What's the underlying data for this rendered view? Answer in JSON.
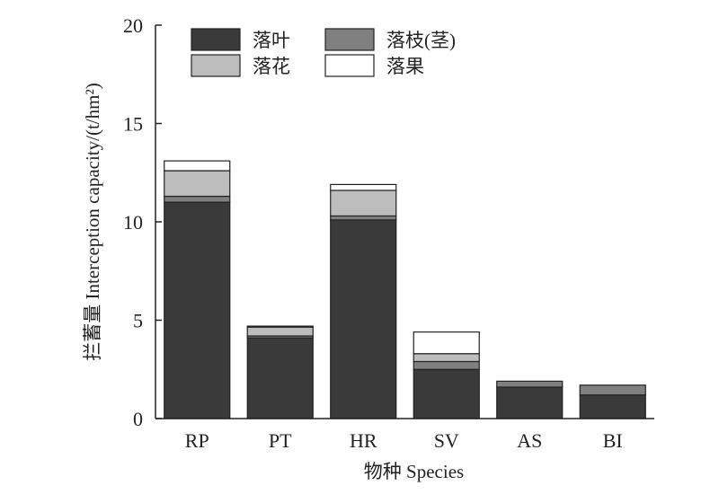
{
  "chart_data": {
    "type": "bar",
    "stacked": true,
    "categories": [
      "RP",
      "PT",
      "HR",
      "SV",
      "AS",
      "BI"
    ],
    "series": [
      {
        "name": "落叶",
        "color": "#3a3a3a",
        "values": [
          11.0,
          4.1,
          10.1,
          2.5,
          1.6,
          1.2
        ]
      },
      {
        "name": "落枝(茎)",
        "color": "#808080",
        "values": [
          0.3,
          0.1,
          0.2,
          0.4,
          0.3,
          0.5
        ]
      },
      {
        "name": "落花",
        "color": "#bdbdbd",
        "values": [
          1.3,
          0.45,
          1.3,
          0.4,
          0.0,
          0.0
        ]
      },
      {
        "name": "落果",
        "color": "#ffffff",
        "values": [
          0.5,
          0.05,
          0.3,
          1.1,
          0.0,
          0.0
        ]
      }
    ],
    "xlabel": "物种 Species",
    "ylabel": "拦蓄量 Interception capacity/(t/hm²)",
    "ylim": [
      0,
      20
    ],
    "yticks": [
      0,
      5,
      10,
      15,
      20
    ],
    "legend": {
      "placement": "top-left",
      "columns": 2
    },
    "grid": false
  }
}
